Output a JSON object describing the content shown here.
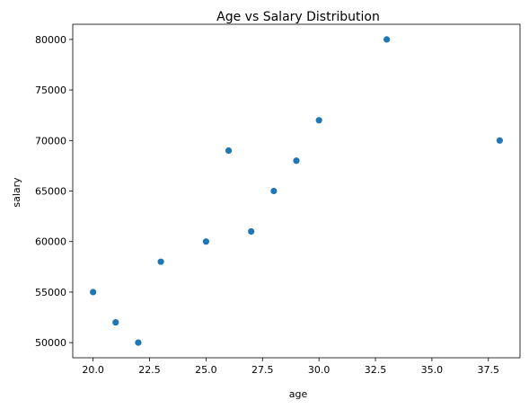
{
  "chart_data": {
    "type": "scatter",
    "title": "Age vs Salary Distribution",
    "xlabel": "age",
    "ylabel": "salary",
    "xlim": [
      19.1,
      38.9
    ],
    "ylim": [
      48500,
      81500
    ],
    "xticks": [
      20.0,
      22.5,
      25.0,
      27.5,
      30.0,
      32.5,
      35.0,
      37.5
    ],
    "xtick_labels": [
      "20.0",
      "22.5",
      "25.0",
      "27.5",
      "30.0",
      "32.5",
      "35.0",
      "37.5"
    ],
    "yticks": [
      50000,
      55000,
      60000,
      65000,
      70000,
      75000,
      80000
    ],
    "ytick_labels": [
      "50000",
      "55000",
      "60000",
      "65000",
      "70000",
      "75000",
      "80000"
    ],
    "grid": false,
    "marker_color": "#1f77b4",
    "points": [
      {
        "x": 20,
        "y": 55000
      },
      {
        "x": 21,
        "y": 52000
      },
      {
        "x": 22,
        "y": 50000
      },
      {
        "x": 23,
        "y": 58000
      },
      {
        "x": 25,
        "y": 60000
      },
      {
        "x": 26,
        "y": 69000
      },
      {
        "x": 27,
        "y": 61000
      },
      {
        "x": 28,
        "y": 65000
      },
      {
        "x": 29,
        "y": 68000
      },
      {
        "x": 30,
        "y": 72000
      },
      {
        "x": 33,
        "y": 80000
      },
      {
        "x": 38,
        "y": 70000
      }
    ]
  }
}
